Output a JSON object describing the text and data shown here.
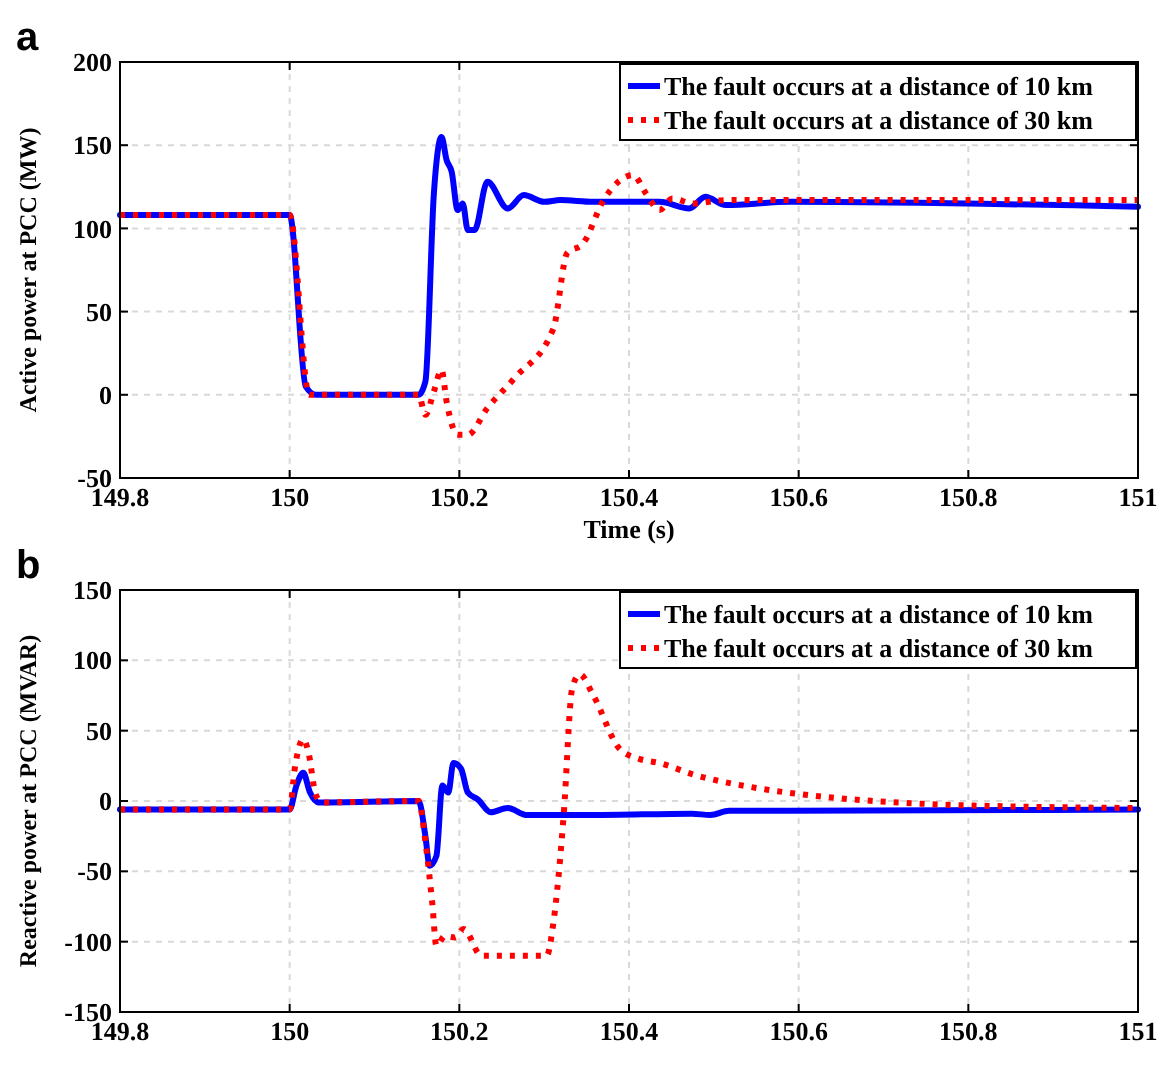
{
  "chart_data": [
    {
      "type": "line",
      "title": "a",
      "xlabel": "Time (s)",
      "ylabel": "Active power at PCC (MW)",
      "xlim": [
        149.8,
        151
      ],
      "xticks": [
        149.8,
        150,
        150.2,
        150.4,
        150.6,
        150.8,
        151
      ],
      "ylim": [
        -50,
        200
      ],
      "yticks": [
        -50,
        0,
        50,
        100,
        150,
        200
      ],
      "grid": true,
      "legend": "top right",
      "series": [
        {
          "name": "The fault occurs at a distance of 10 km",
          "color": "#0000ff",
          "line_style": "solid",
          "x": [
            149.8,
            150,
            150.019,
            150.031,
            150.152,
            150.16,
            150.17,
            150.179,
            150.185,
            150.191,
            150.198,
            150.204,
            150.21,
            150.218,
            150.233,
            150.257,
            150.276,
            150.3,
            150.319,
            150.358,
            150.436,
            150.471,
            150.49,
            150.514,
            150.59,
            151
          ],
          "values": [
            108,
            108,
            5,
            0,
            0,
            8,
            121,
            155,
            141,
            134,
            111,
            115,
            99,
            99,
            128,
            112,
            120,
            116,
            117,
            116,
            116,
            112,
            119,
            114,
            116,
            113
          ]
        },
        {
          "name": "The fault occurs at a distance of 30 km",
          "color": "#ff0000",
          "line_style": "dotted",
          "x": [
            149.8,
            150,
            150.023,
            150.152,
            150.16,
            150.17,
            150.179,
            150.185,
            150.198,
            150.21,
            150.233,
            150.265,
            150.311,
            150.327,
            150.346,
            150.37,
            150.405,
            150.42,
            150.436,
            150.451,
            150.475,
            150.514,
            151
          ],
          "values": [
            108,
            108,
            0,
            0,
            -12,
            2,
            15,
            -4,
            -24,
            -24,
            -8,
            10,
            40,
            85,
            91,
            117,
            132,
            121,
            111,
            118,
            115,
            117,
            117
          ]
        }
      ]
    },
    {
      "type": "line",
      "title": "b",
      "ylabel": "Reactive power at PCC (MVAR)",
      "xlim": [
        149.8,
        151
      ],
      "xticks": [
        149.8,
        150,
        150.2,
        150.4,
        150.6,
        150.8,
        151
      ],
      "ylim": [
        -150,
        150
      ],
      "yticks": [
        -150,
        -100,
        -50,
        0,
        50,
        100,
        150
      ],
      "grid": true,
      "legend": "top right",
      "series": [
        {
          "name": "The fault occurs at a distance of 10 km",
          "color": "#0000ff",
          "line_style": "solid",
          "x": [
            149.8,
            150,
            150.008,
            150.016,
            150.024,
            150.034,
            150.152,
            150.16,
            150.165,
            150.173,
            150.18,
            150.187,
            150.193,
            150.202,
            150.21,
            150.222,
            150.237,
            150.257,
            150.28,
            150.357,
            150.474,
            150.496,
            150.518,
            150.59,
            151
          ],
          "values": [
            -6,
            -6,
            11,
            20,
            6,
            -1,
            0,
            -25,
            -46,
            -39,
            11,
            6,
            27,
            23,
            6,
            1,
            -8,
            -5,
            -10,
            -10,
            -9,
            -10,
            -7,
            -7,
            -6
          ]
        },
        {
          "name": "The fault occurs at a distance of 30 km",
          "color": "#ff0000",
          "line_style": "dotted",
          "x": [
            149.8,
            150,
            150.006,
            150.016,
            150.022,
            150.031,
            150.039,
            150.152,
            150.16,
            150.168,
            150.173,
            150.183,
            150.195,
            150.205,
            150.226,
            150.303,
            150.311,
            150.323,
            150.333,
            150.342,
            150.358,
            150.389,
            150.412,
            150.436,
            150.475,
            150.553,
            150.63,
            150.747,
            150.864,
            151
          ],
          "values": [
            -6,
            -6,
            23,
            44,
            35,
            4,
            -1,
            0,
            -29,
            -72,
            -103,
            -96,
            -97,
            -91,
            -110,
            -110,
            -86,
            -10,
            80,
            90,
            75,
            37,
            30,
            27,
            19,
            9,
            3,
            -2,
            -4,
            -5
          ]
        }
      ]
    }
  ]
}
